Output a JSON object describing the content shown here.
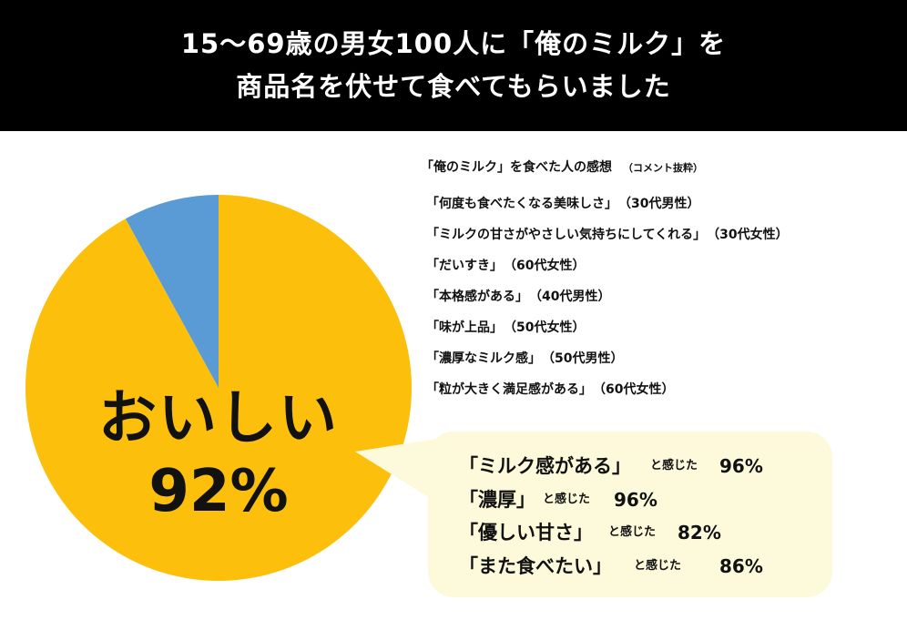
{
  "header": {
    "line1": "15〜69歳の男女100人に「俺のミルク」を",
    "line2": "商品名を伏せて食べてもらいました"
  },
  "chart_data": {
    "type": "pie",
    "slices": [
      {
        "label": "おいしい",
        "value": 92,
        "color": "#fcbf0b"
      },
      {
        "label": "",
        "value": 8,
        "color": "#5b9bd5"
      }
    ],
    "center_label": "おいしい",
    "center_value": "92%"
  },
  "comments": {
    "title": "「俺のミルク」を食べた人の感想",
    "note": "（コメント抜粋）",
    "items": [
      {
        "text": "「何度も食べたくなる美味しさ」",
        "who": "（30代男性）"
      },
      {
        "text": "「ミルクの甘さがやさしい気持ちにしてくれる」",
        "who": "（30代女性）"
      },
      {
        "text": "「だいすき」",
        "who": "（60代女性）"
      },
      {
        "text": "「本格感がある」",
        "who": "（40代男性）"
      },
      {
        "text": "「味が上品」",
        "who": "（50代女性）"
      },
      {
        "text": "「濃厚なミルク感」",
        "who": "（50代男性）"
      },
      {
        "text": "「粒が大きく満足感がある」",
        "who": "（60代女性）"
      }
    ]
  },
  "stats": [
    {
      "label": "「ミルク感がある」",
      "felt": "と感じた",
      "percent": "96%"
    },
    {
      "label": "「濃厚」",
      "felt": "と感じた",
      "percent": "96%"
    },
    {
      "label": "「優しい甘さ」",
      "felt": "と感じた",
      "percent": "82%"
    },
    {
      "label": "「また食べたい」",
      "felt": "と感じた",
      "percent": "86%"
    }
  ],
  "colors": {
    "banner_bg": "#000000",
    "pie_main": "#fcbf0b",
    "pie_other": "#5b9bd5",
    "bubble_bg": "#fdfadc"
  }
}
